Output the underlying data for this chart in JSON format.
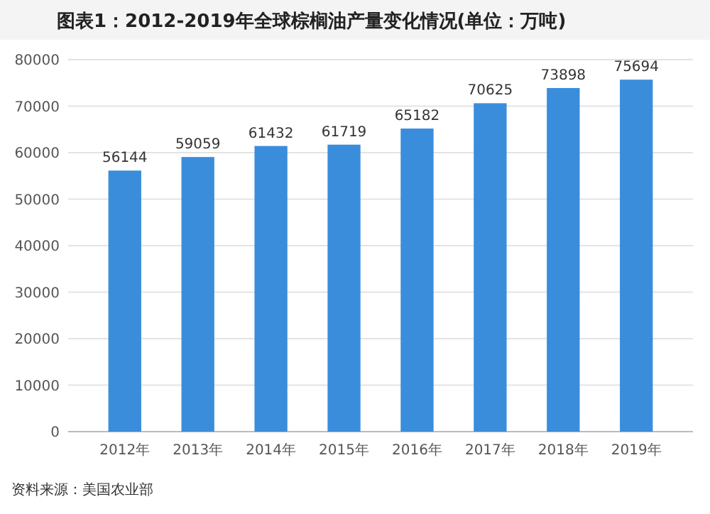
{
  "chart_data": {
    "type": "bar",
    "title": "图表1：2012-2019年全球棕榈油产量变化情况(单位：万吨)",
    "categories": [
      "2012年",
      "2013年",
      "2014年",
      "2015年",
      "2016年",
      "2017年",
      "2018年",
      "2019年"
    ],
    "values": [
      56144,
      59059,
      61432,
      61719,
      65182,
      70625,
      73898,
      75694
    ],
    "color": "#3a8ddb",
    "data_labels": true,
    "ylim": [
      0,
      80000
    ],
    "yticks": [
      0,
      10000,
      20000,
      30000,
      40000,
      50000,
      60000,
      70000,
      80000
    ],
    "grid": "y",
    "annotations": [
      "资料来源：美国农业部"
    ]
  }
}
